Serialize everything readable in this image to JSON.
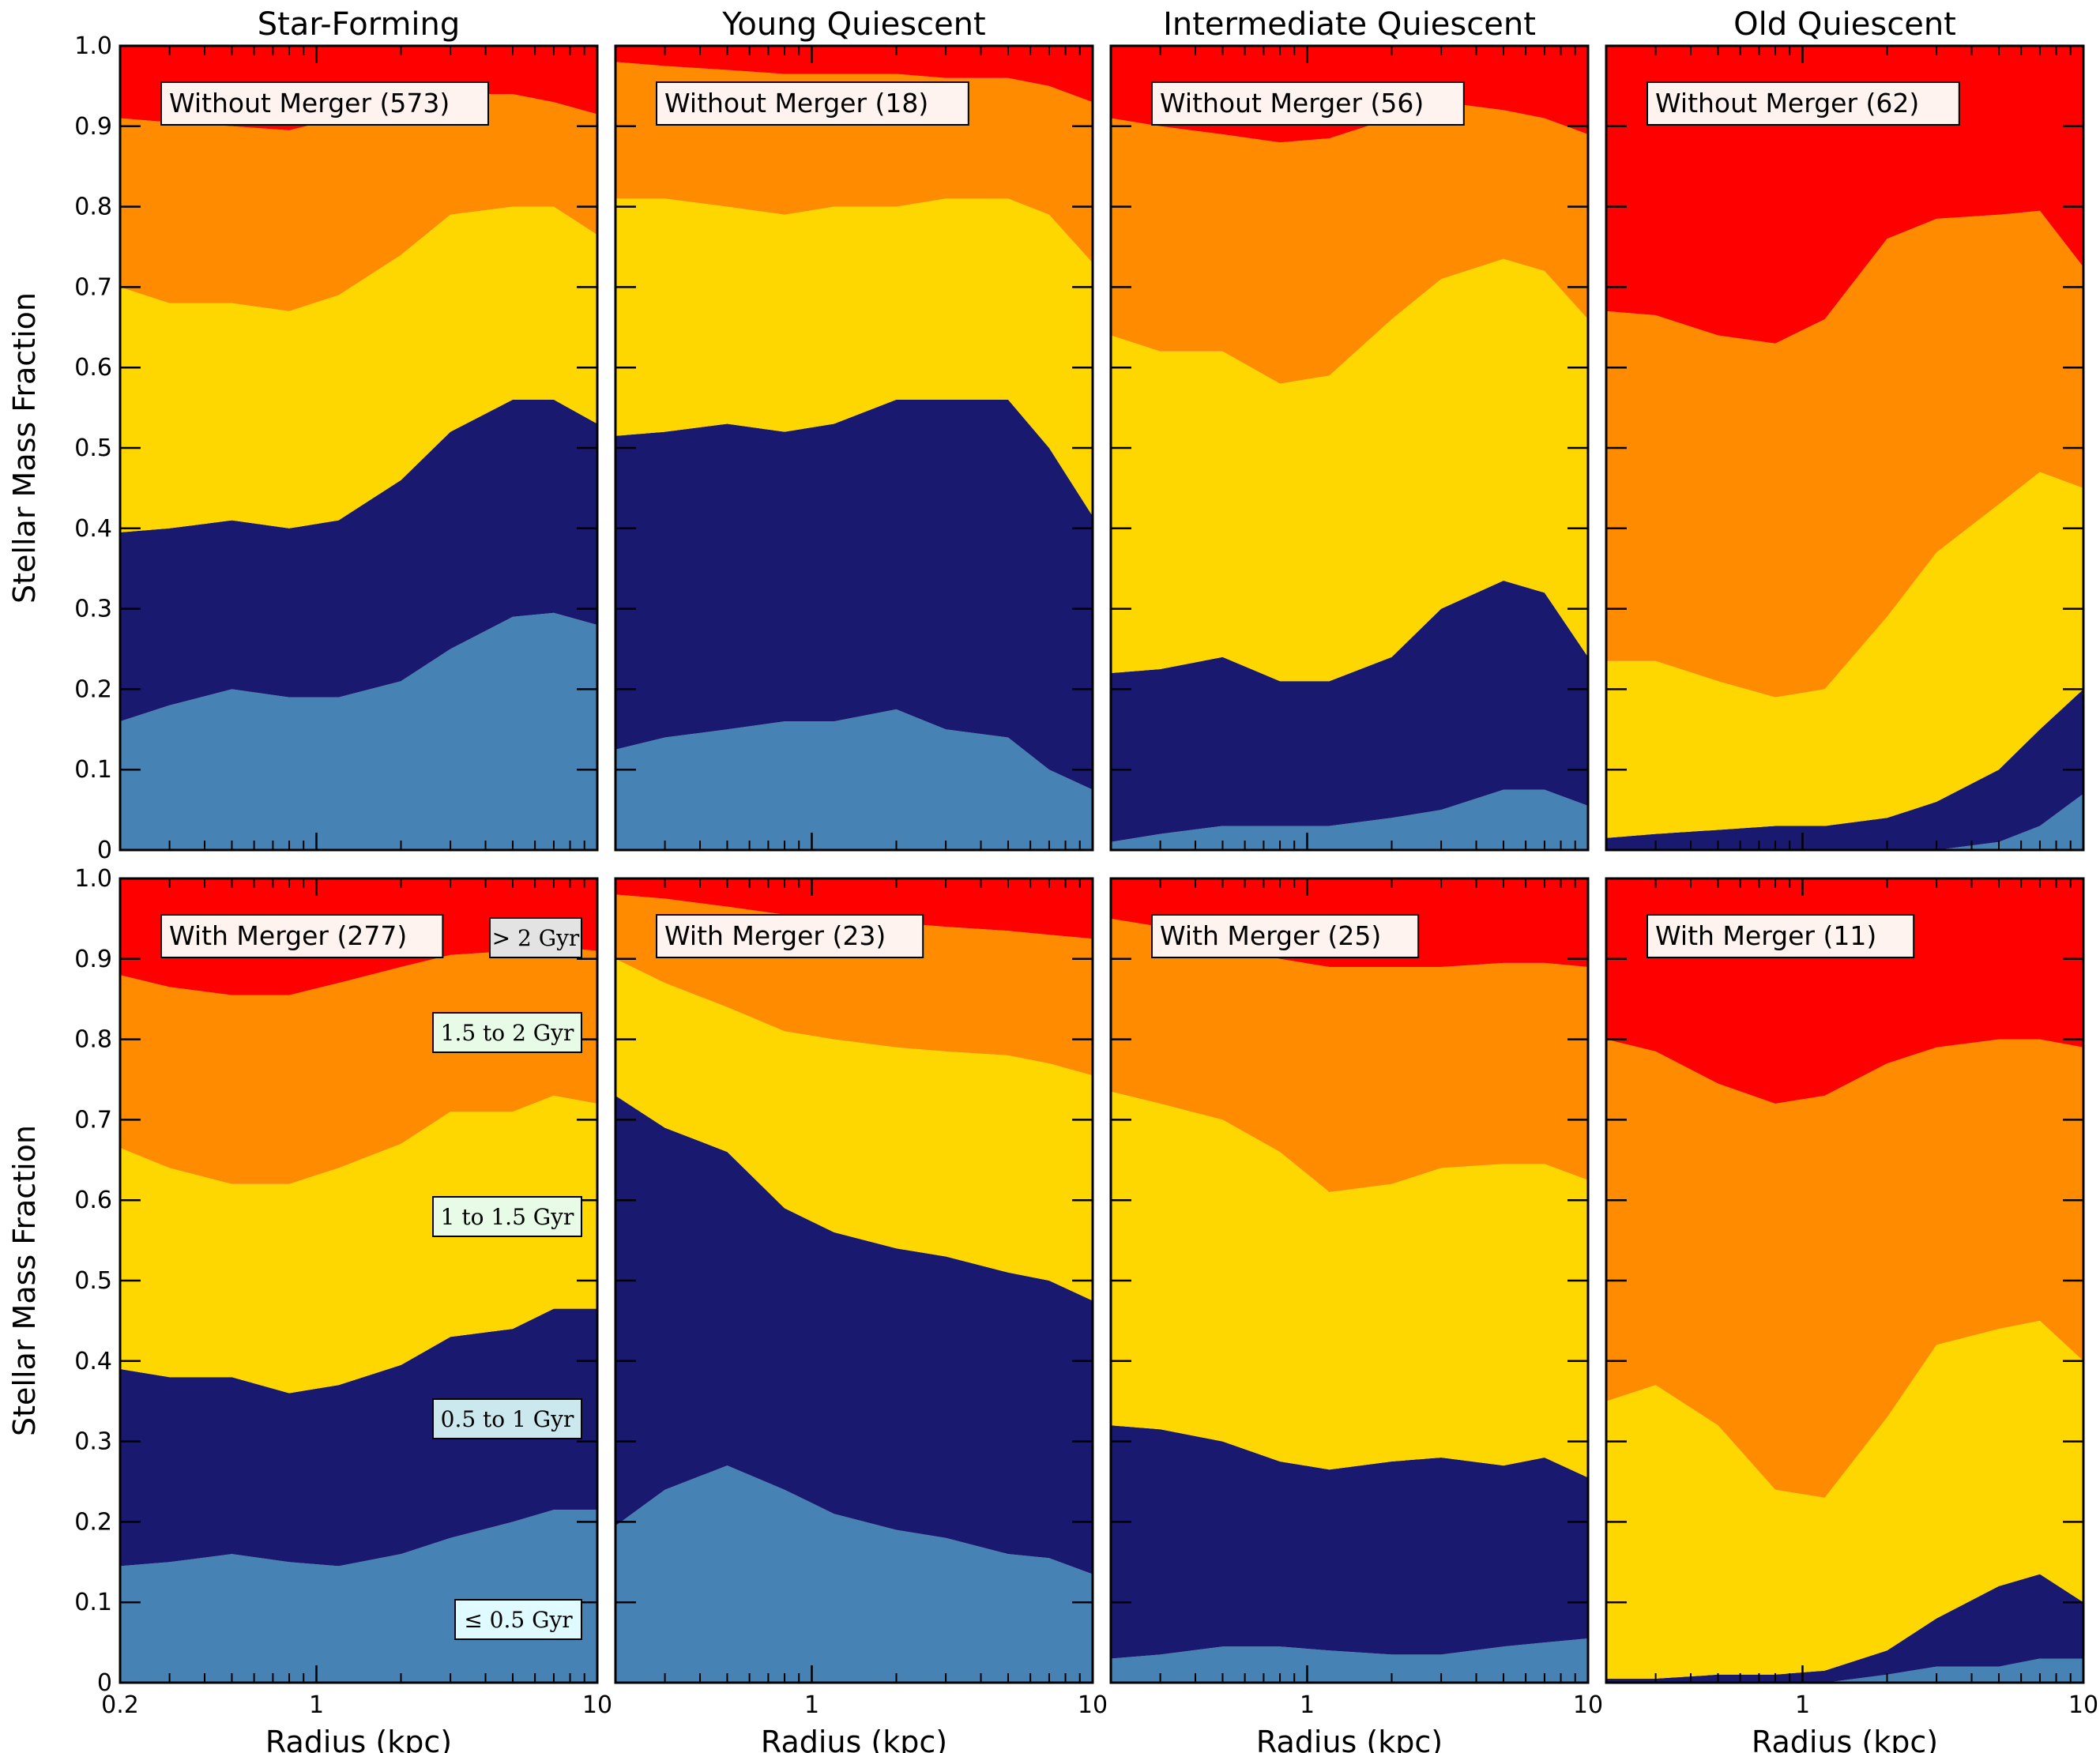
{
  "chart_data": {
    "type": "area",
    "stacked": true,
    "figure_ylabel": "Stellar Mass Fraction",
    "xlabel": "Radius (kpc)",
    "xscale": "log",
    "xlim": [
      0.2,
      10
    ],
    "ylim": [
      0,
      1
    ],
    "xticks": [
      0.2,
      1,
      10
    ],
    "xtick_labels": [
      "0.2",
      "1",
      "10"
    ],
    "yticks": [
      0,
      0.1,
      0.2,
      0.3,
      0.4,
      0.5,
      0.6,
      0.7,
      0.8,
      0.9,
      1.0
    ],
    "ytick_labels": [
      "0",
      "0.1",
      "0.2",
      "0.3",
      "0.4",
      "0.5",
      "0.6",
      "0.7",
      "0.8",
      "0.9",
      "1.0"
    ],
    "age_bins": [
      {
        "name": "≤ 0.5 Gyr",
        "color": "#4682b4",
        "legend_bg": "#e0fbff"
      },
      {
        "name": "0.5 to 1 Gyr",
        "color": "#191970",
        "legend_bg": "#cbe8ee"
      },
      {
        "name": "1 to 1.5 Gyr",
        "color": "#ffd700",
        "legend_bg": "#e8fbe6"
      },
      {
        "name": "1.5 to 2 Gyr",
        "color": "#ff8c00",
        "legend_bg": "#e8fbe6"
      },
      {
        "name": "> 2 Gyr",
        "color": "#ff0000",
        "legend_bg": "#e3e3e3"
      }
    ],
    "x": [
      0.2,
      0.3,
      0.5,
      0.8,
      1.2,
      2,
      3,
      5,
      7,
      10
    ],
    "rows": [
      {
        "name": "Without Merger",
        "panels": [
          {
            "title": "Star-Forming",
            "label": "Without Merger (573)",
            "boundaries": [
              [
                0.16,
                0.18,
                0.2,
                0.19,
                0.19,
                0.21,
                0.25,
                0.29,
                0.295,
                0.28
              ],
              [
                0.395,
                0.4,
                0.41,
                0.4,
                0.41,
                0.46,
                0.52,
                0.56,
                0.56,
                0.53
              ],
              [
                0.7,
                0.68,
                0.68,
                0.67,
                0.69,
                0.74,
                0.79,
                0.8,
                0.8,
                0.765
              ],
              [
                0.91,
                0.905,
                0.9,
                0.895,
                0.91,
                0.93,
                0.94,
                0.94,
                0.93,
                0.915
              ]
            ]
          },
          {
            "title": "Young Quiescent",
            "label": "Without Merger (18)",
            "boundaries": [
              [
                0.125,
                0.14,
                0.15,
                0.16,
                0.16,
                0.175,
                0.15,
                0.14,
                0.1,
                0.075
              ],
              [
                0.515,
                0.52,
                0.53,
                0.52,
                0.53,
                0.56,
                0.56,
                0.56,
                0.5,
                0.415
              ],
              [
                0.81,
                0.81,
                0.8,
                0.79,
                0.8,
                0.8,
                0.81,
                0.81,
                0.79,
                0.73
              ],
              [
                0.98,
                0.975,
                0.97,
                0.965,
                0.965,
                0.965,
                0.96,
                0.96,
                0.95,
                0.93
              ]
            ]
          },
          {
            "title": "Intermediate Quiescent",
            "label": "Without Merger (56)",
            "boundaries": [
              [
                0.01,
                0.02,
                0.03,
                0.03,
                0.03,
                0.04,
                0.05,
                0.075,
                0.075,
                0.055
              ],
              [
                0.22,
                0.225,
                0.24,
                0.21,
                0.21,
                0.24,
                0.3,
                0.335,
                0.32,
                0.24
              ],
              [
                0.64,
                0.62,
                0.62,
                0.58,
                0.59,
                0.66,
                0.71,
                0.735,
                0.72,
                0.66
              ],
              [
                0.91,
                0.9,
                0.89,
                0.88,
                0.885,
                0.91,
                0.93,
                0.92,
                0.91,
                0.89
              ]
            ]
          },
          {
            "title": "Old Quiescent",
            "label": "Without Merger (62)",
            "boundaries": [
              [
                0.0,
                0.0,
                0.0,
                0.0,
                0.0,
                0.0,
                0.0,
                0.01,
                0.03,
                0.07
              ],
              [
                0.015,
                0.02,
                0.025,
                0.03,
                0.03,
                0.04,
                0.06,
                0.1,
                0.15,
                0.2
              ],
              [
                0.235,
                0.235,
                0.21,
                0.19,
                0.2,
                0.29,
                0.37,
                0.43,
                0.47,
                0.45
              ],
              [
                0.67,
                0.665,
                0.64,
                0.63,
                0.66,
                0.76,
                0.785,
                0.79,
                0.795,
                0.725
              ]
            ]
          }
        ]
      },
      {
        "name": "With Merger",
        "panels": [
          {
            "title": "Star-Forming",
            "label": "With Merger (277)",
            "boundaries": [
              [
                0.145,
                0.15,
                0.16,
                0.15,
                0.145,
                0.16,
                0.18,
                0.2,
                0.215,
                0.215
              ],
              [
                0.39,
                0.38,
                0.38,
                0.36,
                0.37,
                0.395,
                0.43,
                0.44,
                0.465,
                0.465
              ],
              [
                0.665,
                0.64,
                0.62,
                0.62,
                0.64,
                0.67,
                0.71,
                0.71,
                0.73,
                0.72
              ],
              [
                0.88,
                0.865,
                0.855,
                0.855,
                0.87,
                0.89,
                0.905,
                0.91,
                0.915,
                0.91
              ]
            ]
          },
          {
            "title": "Young Quiescent",
            "label": "With Merger (23)",
            "boundaries": [
              [
                0.195,
                0.24,
                0.27,
                0.24,
                0.21,
                0.19,
                0.18,
                0.16,
                0.155,
                0.135
              ],
              [
                0.73,
                0.69,
                0.66,
                0.59,
                0.56,
                0.54,
                0.53,
                0.51,
                0.5,
                0.475
              ],
              [
                0.9,
                0.87,
                0.84,
                0.81,
                0.8,
                0.79,
                0.785,
                0.78,
                0.77,
                0.755
              ],
              [
                0.98,
                0.975,
                0.965,
                0.955,
                0.95,
                0.945,
                0.94,
                0.935,
                0.93,
                0.925
              ]
            ]
          },
          {
            "title": "Intermediate Quiescent",
            "label": "With Merger (25)",
            "boundaries": [
              [
                0.03,
                0.035,
                0.045,
                0.045,
                0.04,
                0.035,
                0.035,
                0.045,
                0.05,
                0.055
              ],
              [
                0.32,
                0.315,
                0.3,
                0.275,
                0.265,
                0.275,
                0.28,
                0.27,
                0.28,
                0.255
              ],
              [
                0.735,
                0.72,
                0.7,
                0.66,
                0.61,
                0.62,
                0.64,
                0.645,
                0.645,
                0.625
              ],
              [
                0.95,
                0.94,
                0.92,
                0.9,
                0.89,
                0.89,
                0.89,
                0.895,
                0.895,
                0.89
              ]
            ]
          },
          {
            "title": "Old Quiescent",
            "label": "With Merger (11)",
            "boundaries": [
              [
                0.0,
                0.0,
                0.0,
                0.0,
                0.0,
                0.01,
                0.02,
                0.02,
                0.03,
                0.03
              ],
              [
                0.005,
                0.005,
                0.01,
                0.01,
                0.015,
                0.04,
                0.08,
                0.12,
                0.135,
                0.1
              ],
              [
                0.35,
                0.37,
                0.32,
                0.24,
                0.23,
                0.33,
                0.42,
                0.44,
                0.45,
                0.4
              ],
              [
                0.8,
                0.785,
                0.745,
                0.72,
                0.73,
                0.77,
                0.79,
                0.8,
                0.8,
                0.79
              ]
            ]
          }
        ]
      }
    ]
  }
}
